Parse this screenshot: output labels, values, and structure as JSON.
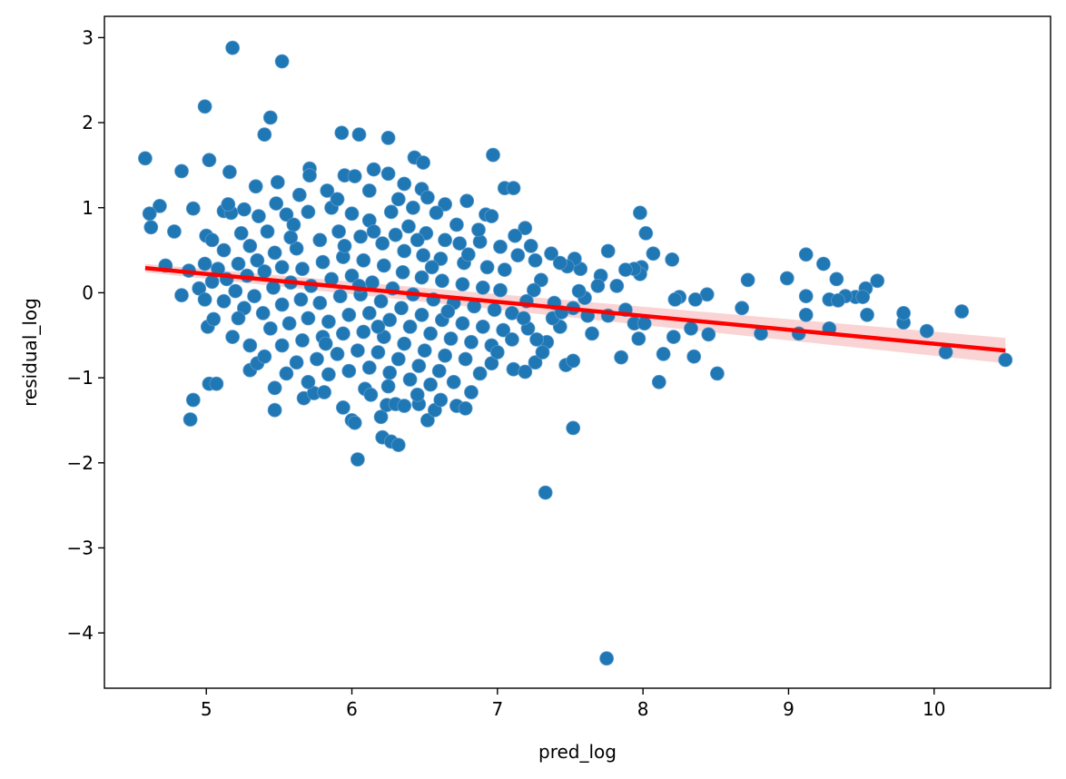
{
  "chart_data": {
    "type": "scatter",
    "title": "",
    "xlabel": "pred_log",
    "ylabel": "residual_log",
    "xlim": [
      4.3,
      10.8
    ],
    "ylim": [
      -4.65,
      3.25
    ],
    "xticks": [
      5,
      6,
      7,
      8,
      9,
      10
    ],
    "yticks": [
      -4,
      -3,
      -2,
      -1,
      0,
      1,
      2,
      3
    ],
    "x_tick_labels": [
      "5",
      "6",
      "7",
      "8",
      "9",
      "10"
    ],
    "y_tick_labels": [
      "−4",
      "−3",
      "−2",
      "−1",
      "0",
      "1",
      "2",
      "3"
    ],
    "grid": false,
    "colors": {
      "points": "#1f77b4",
      "regression_line": "#ff0000",
      "confidence_band": "#f4a0a0"
    },
    "regression": {
      "x": [
        4.58,
        10.49
      ],
      "y": [
        0.29,
        -0.68
      ],
      "band_halfwidth": [
        0.05,
        0.15
      ]
    },
    "points": [
      [
        5.18,
        2.88
      ],
      [
        5.52,
        2.72
      ],
      [
        4.99,
        2.19
      ],
      [
        5.44,
        2.06
      ],
      [
        5.4,
        1.86
      ],
      [
        5.93,
        1.88
      ],
      [
        6.05,
        1.86
      ],
      [
        6.25,
        1.82
      ],
      [
        4.58,
        1.58
      ],
      [
        5.02,
        1.56
      ],
      [
        6.97,
        1.62
      ],
      [
        6.43,
        1.59
      ],
      [
        6.49,
        1.53
      ],
      [
        4.83,
        1.43
      ],
      [
        5.16,
        1.42
      ],
      [
        5.71,
        1.46
      ],
      [
        5.95,
        1.38
      ],
      [
        6.15,
        1.45
      ],
      [
        6.25,
        1.4
      ],
      [
        6.02,
        1.37
      ],
      [
        5.71,
        1.38
      ],
      [
        5.49,
        1.3
      ],
      [
        5.34,
        1.25
      ],
      [
        6.36,
        1.28
      ],
      [
        6.48,
        1.22
      ],
      [
        7.05,
        1.23
      ],
      [
        7.11,
        1.23
      ],
      [
        6.52,
        1.12
      ],
      [
        6.79,
        1.08
      ],
      [
        6.64,
        1.04
      ],
      [
        4.68,
        1.02
      ],
      [
        4.61,
        0.93
      ],
      [
        4.91,
        0.99
      ],
      [
        5.12,
        0.96
      ],
      [
        5.26,
        0.98
      ],
      [
        4.62,
        0.77
      ],
      [
        4.78,
        0.72
      ],
      [
        5.0,
        0.67
      ],
      [
        5.04,
        0.62
      ],
      [
        5.17,
        0.94
      ],
      [
        5.15,
        1.04
      ],
      [
        6.92,
        0.92
      ],
      [
        6.96,
        0.9
      ],
      [
        7.98,
        0.94
      ],
      [
        8.02,
        0.7
      ],
      [
        8.07,
        0.46
      ],
      [
        7.76,
        0.49
      ],
      [
        7.19,
        0.76
      ],
      [
        7.12,
        0.67
      ],
      [
        7.23,
        0.55
      ],
      [
        7.37,
        0.46
      ],
      [
        4.72,
        0.32
      ],
      [
        4.88,
        0.26
      ],
      [
        4.83,
        -0.03
      ],
      [
        4.99,
        0.34
      ],
      [
        5.04,
        0.13
      ],
      [
        4.95,
        0.05
      ],
      [
        4.99,
        -0.08
      ],
      [
        5.01,
        -0.4
      ],
      [
        5.05,
        -0.31
      ],
      [
        5.18,
        -0.52
      ],
      [
        4.91,
        -1.26
      ],
      [
        4.89,
        -1.49
      ],
      [
        5.02,
        -1.07
      ],
      [
        5.07,
        -1.07
      ],
      [
        5.3,
        -0.91
      ],
      [
        5.35,
        -0.83
      ],
      [
        5.47,
        -1.12
      ],
      [
        5.47,
        -1.38
      ],
      [
        5.67,
        -1.24
      ],
      [
        5.74,
        -1.18
      ],
      [
        5.81,
        -1.17
      ],
      [
        5.94,
        -1.35
      ],
      [
        6.0,
        -1.5
      ],
      [
        6.02,
        -1.53
      ],
      [
        6.04,
        -1.96
      ],
      [
        6.2,
        -1.46
      ],
      [
        6.24,
        -1.32
      ],
      [
        6.3,
        -1.31
      ],
      [
        6.21,
        -1.7
      ],
      [
        6.27,
        -1.75
      ],
      [
        6.32,
        -1.79
      ],
      [
        6.09,
        -1.13
      ],
      [
        6.13,
        -1.2
      ],
      [
        6.36,
        -1.33
      ],
      [
        6.46,
        -1.31
      ],
      [
        6.52,
        -1.5
      ],
      [
        6.57,
        -1.38
      ],
      [
        6.61,
        -1.26
      ],
      [
        6.72,
        -1.33
      ],
      [
        6.78,
        -1.36
      ],
      [
        6.82,
        -1.17
      ],
      [
        6.96,
        -0.83
      ],
      [
        7.11,
        -0.9
      ],
      [
        7.19,
        -0.93
      ],
      [
        7.26,
        -0.82
      ],
      [
        7.33,
        -2.35
      ],
      [
        7.52,
        -1.59
      ],
      [
        7.47,
        -0.85
      ],
      [
        7.52,
        -0.8
      ],
      [
        7.75,
        -4.3
      ],
      [
        7.85,
        -0.76
      ],
      [
        8.11,
        -1.05
      ],
      [
        8.35,
        -0.75
      ],
      [
        8.51,
        -0.95
      ],
      [
        8.81,
        -0.48
      ],
      [
        9.07,
        -0.48
      ],
      [
        9.28,
        -0.42
      ],
      [
        9.79,
        -0.35
      ],
      [
        9.95,
        -0.45
      ],
      [
        10.08,
        -0.7
      ],
      [
        10.49,
        -0.79
      ],
      [
        10.19,
        -0.22
      ],
      [
        9.79,
        -0.24
      ],
      [
        9.54,
        -0.26
      ],
      [
        9.12,
        -0.26
      ],
      [
        8.68,
        -0.18
      ],
      [
        8.72,
        0.15
      ],
      [
        8.99,
        0.17
      ],
      [
        9.12,
        0.45
      ],
      [
        9.24,
        0.34
      ],
      [
        9.33,
        0.16
      ],
      [
        9.61,
        0.14
      ],
      [
        9.53,
        0.05
      ],
      [
        9.46,
        -0.05
      ],
      [
        9.51,
        -0.05
      ],
      [
        9.39,
        -0.04
      ],
      [
        9.28,
        -0.08
      ],
      [
        9.34,
        -0.09
      ],
      [
        9.12,
        -0.04
      ],
      [
        8.44,
        -0.02
      ],
      [
        8.36,
        -0.08
      ],
      [
        8.25,
        -0.05
      ],
      [
        8.22,
        -0.08
      ],
      [
        8.2,
        0.39
      ],
      [
        7.99,
        0.3
      ],
      [
        7.98,
        0.22
      ],
      [
        7.94,
        0.28
      ],
      [
        7.88,
        0.27
      ],
      [
        7.82,
        0.08
      ],
      [
        7.94,
        -0.36
      ],
      [
        8.01,
        -0.36
      ],
      [
        7.97,
        -0.54
      ],
      [
        8.14,
        -0.72
      ],
      [
        8.21,
        -0.52
      ],
      [
        8.33,
        -0.42
      ],
      [
        8.45,
        -0.49
      ],
      [
        7.65,
        -0.48
      ],
      [
        7.43,
        -0.4
      ],
      [
        7.38,
        -0.3
      ],
      [
        7.34,
        -0.58
      ],
      [
        7.31,
        -0.7
      ],
      [
        7.27,
        -0.55
      ],
      [
        7.21,
        -0.42
      ],
      [
        7.57,
        0.28
      ],
      [
        7.53,
        0.4
      ],
      [
        7.48,
        0.31
      ],
      [
        7.43,
        0.35
      ],
      [
        7.71,
        0.2
      ],
      [
        7.69,
        0.08
      ],
      [
        7.88,
        -0.2
      ],
      [
        7.76,
        -0.27
      ],
      [
        7.62,
        -0.27
      ],
      [
        7.52,
        -0.18
      ],
      [
        7.44,
        -0.23
      ],
      [
        7.39,
        -0.12
      ],
      [
        7.6,
        -0.06
      ],
      [
        7.56,
        0.02
      ],
      [
        5.3,
        0.55
      ],
      [
        5.42,
        0.72
      ],
      [
        5.55,
        0.92
      ],
      [
        5.6,
        0.8
      ],
      [
        5.7,
        0.95
      ],
      [
        5.86,
        1.0
      ],
      [
        6.0,
        0.93
      ],
      [
        6.12,
        0.85
      ],
      [
        6.27,
        0.95
      ],
      [
        6.39,
        0.78
      ],
      [
        6.51,
        0.7
      ],
      [
        6.64,
        0.62
      ],
      [
        6.74,
        0.58
      ],
      [
        6.88,
        0.6
      ],
      [
        5.22,
        0.34
      ],
      [
        5.35,
        0.38
      ],
      [
        5.47,
        0.47
      ],
      [
        5.62,
        0.52
      ],
      [
        5.78,
        0.62
      ],
      [
        5.91,
        0.72
      ],
      [
        6.06,
        0.66
      ],
      [
        6.21,
        0.58
      ],
      [
        6.36,
        0.49
      ],
      [
        6.49,
        0.44
      ],
      [
        6.61,
        0.4
      ],
      [
        6.77,
        0.35
      ],
      [
        6.93,
        0.3
      ],
      [
        7.05,
        0.27
      ],
      [
        5.14,
        0.16
      ],
      [
        5.28,
        0.2
      ],
      [
        5.4,
        0.25
      ],
      [
        5.52,
        0.3
      ],
      [
        5.66,
        0.28
      ],
      [
        5.8,
        0.36
      ],
      [
        5.94,
        0.42
      ],
      [
        6.08,
        0.38
      ],
      [
        6.22,
        0.32
      ],
      [
        6.35,
        0.24
      ],
      [
        6.48,
        0.18
      ],
      [
        6.62,
        0.14
      ],
      [
        6.76,
        0.1
      ],
      [
        6.9,
        0.06
      ],
      [
        7.02,
        0.03
      ],
      [
        5.2,
        0.02
      ],
      [
        5.33,
        -0.04
      ],
      [
        5.46,
        0.06
      ],
      [
        5.58,
        0.12
      ],
      [
        5.72,
        0.08
      ],
      [
        5.86,
        0.16
      ],
      [
        6.0,
        0.2
      ],
      [
        6.14,
        0.12
      ],
      [
        6.28,
        0.05
      ],
      [
        6.42,
        -0.02
      ],
      [
        6.56,
        -0.08
      ],
      [
        6.7,
        -0.12
      ],
      [
        6.84,
        -0.16
      ],
      [
        6.98,
        -0.2
      ],
      [
        7.1,
        -0.24
      ],
      [
        5.26,
        -0.18
      ],
      [
        5.39,
        -0.24
      ],
      [
        5.52,
        -0.14
      ],
      [
        5.65,
        -0.08
      ],
      [
        5.78,
        -0.12
      ],
      [
        5.92,
        -0.04
      ],
      [
        6.06,
        -0.02
      ],
      [
        6.2,
        -0.1
      ],
      [
        6.34,
        -0.18
      ],
      [
        6.48,
        -0.26
      ],
      [
        6.62,
        -0.32
      ],
      [
        6.76,
        -0.36
      ],
      [
        6.9,
        -0.4
      ],
      [
        7.04,
        -0.44
      ],
      [
        5.44,
        -0.42
      ],
      [
        5.57,
        -0.36
      ],
      [
        5.7,
        -0.3
      ],
      [
        5.84,
        -0.34
      ],
      [
        5.98,
        -0.26
      ],
      [
        6.12,
        -0.24
      ],
      [
        6.26,
        -0.32
      ],
      [
        6.4,
        -0.4
      ],
      [
        6.54,
        -0.48
      ],
      [
        6.68,
        -0.54
      ],
      [
        6.82,
        -0.58
      ],
      [
        6.96,
        -0.62
      ],
      [
        5.52,
        -0.62
      ],
      [
        5.66,
        -0.56
      ],
      [
        5.8,
        -0.52
      ],
      [
        5.94,
        -0.48
      ],
      [
        6.08,
        -0.46
      ],
      [
        6.22,
        -0.52
      ],
      [
        6.36,
        -0.6
      ],
      [
        6.5,
        -0.68
      ],
      [
        6.64,
        -0.74
      ],
      [
        6.78,
        -0.78
      ],
      [
        5.62,
        -0.82
      ],
      [
        5.76,
        -0.78
      ],
      [
        5.9,
        -0.72
      ],
      [
        6.04,
        -0.68
      ],
      [
        6.18,
        -0.7
      ],
      [
        6.32,
        -0.78
      ],
      [
        6.46,
        -0.86
      ],
      [
        6.6,
        -0.92
      ],
      [
        5.84,
        -0.96
      ],
      [
        5.98,
        -0.92
      ],
      [
        6.12,
        -0.88
      ],
      [
        6.26,
        -0.94
      ],
      [
        6.4,
        -1.02
      ],
      [
        6.54,
        -1.08
      ],
      [
        5.36,
        0.9
      ],
      [
        5.48,
        1.05
      ],
      [
        5.64,
        1.15
      ],
      [
        5.83,
        1.2
      ],
      [
        6.12,
        1.2
      ],
      [
        6.32,
        1.1
      ],
      [
        6.58,
        0.94
      ],
      [
        6.72,
        0.8
      ],
      [
        6.87,
        0.74
      ],
      [
        7.02,
        0.54
      ],
      [
        7.14,
        0.44
      ],
      [
        7.26,
        0.38
      ],
      [
        7.3,
        0.15
      ],
      [
        7.25,
        0.03
      ],
      [
        7.2,
        -0.1
      ],
      [
        7.18,
        -0.3
      ],
      [
        7.1,
        -0.55
      ],
      [
        7.0,
        -0.7
      ],
      [
        6.88,
        -0.95
      ],
      [
        6.7,
        -1.05
      ],
      [
        5.24,
        0.7
      ],
      [
        5.12,
        0.5
      ],
      [
        5.08,
        0.28
      ],
      [
        5.12,
        -0.1
      ],
      [
        5.22,
        -0.3
      ],
      [
        5.3,
        -0.62
      ],
      [
        5.4,
        -0.75
      ],
      [
        5.55,
        -0.95
      ],
      [
        5.7,
        -1.05
      ],
      [
        6.25,
        -1.1
      ],
      [
        6.45,
        -1.2
      ],
      [
        5.9,
        1.1
      ],
      [
        6.42,
        1.0
      ],
      [
        6.8,
        0.45
      ],
      [
        5.58,
        0.65
      ],
      [
        6.15,
        0.72
      ],
      [
        6.3,
        0.68
      ],
      [
        6.45,
        0.62
      ],
      [
        5.95,
        0.55
      ],
      [
        6.05,
        0.08
      ],
      [
        6.18,
        -0.4
      ],
      [
        5.82,
        -0.6
      ],
      [
        6.55,
        0.3
      ],
      [
        6.66,
        -0.22
      ]
    ]
  }
}
